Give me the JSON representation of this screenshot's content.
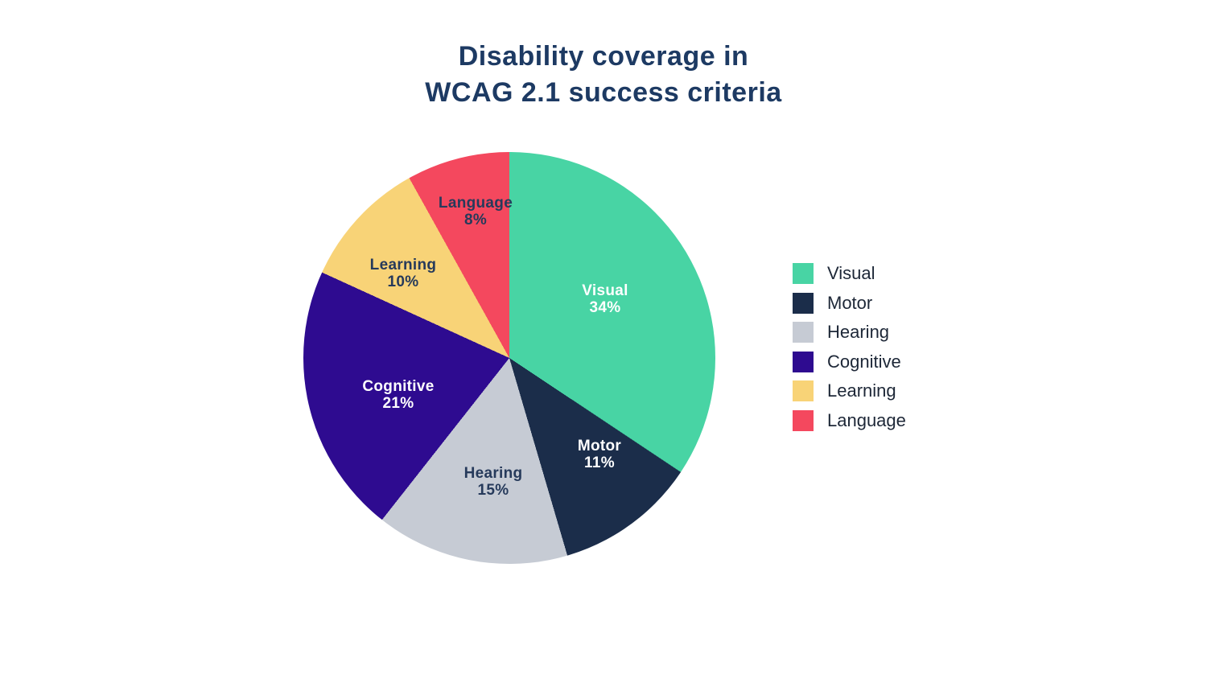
{
  "title": {
    "line1": "Disability coverage in",
    "line2": "WCAG 2.1 success criteria"
  },
  "chart_data": {
    "type": "pie",
    "title": "Disability coverage in WCAG 2.1 success criteria",
    "categories": [
      "Visual",
      "Motor",
      "Hearing",
      "Cognitive",
      "Learning",
      "Language"
    ],
    "values": [
      34,
      11,
      15,
      21,
      10,
      8
    ],
    "unit": "%",
    "start_angle_deg": 0,
    "direction": "clockwise",
    "legend_position": "right",
    "background_color": "#ffffff",
    "title_color": "#1d3a63",
    "slices": [
      {
        "label": "Visual",
        "value": 34,
        "pct_label": "34%",
        "color": "#48d4a4",
        "label_color": "#ffffff"
      },
      {
        "label": "Motor",
        "value": 11,
        "pct_label": "11%",
        "color": "#1b2d4a",
        "label_color": "#ffffff"
      },
      {
        "label": "Hearing",
        "value": 15,
        "pct_label": "15%",
        "color": "#c6cbd4",
        "label_color": "#263a5b"
      },
      {
        "label": "Cognitive",
        "value": 21,
        "pct_label": "21%",
        "color": "#2e0b90",
        "label_color": "#ffffff"
      },
      {
        "label": "Learning",
        "value": 10,
        "pct_label": "10%",
        "color": "#f8d377",
        "label_color": "#263a5b"
      },
      {
        "label": "Language",
        "value": 8,
        "pct_label": "8%",
        "color": "#f4485e",
        "label_color": "#263a5b"
      }
    ],
    "legend": {
      "items": [
        {
          "label": "Visual",
          "color": "#48d4a4"
        },
        {
          "label": "Motor",
          "color": "#1b2d4a"
        },
        {
          "label": "Hearing",
          "color": "#c6cbd4"
        },
        {
          "label": "Cognitive",
          "color": "#2e0b90"
        },
        {
          "label": "Learning",
          "color": "#f8d377"
        },
        {
          "label": "Language",
          "color": "#f4485e"
        }
      ]
    }
  }
}
